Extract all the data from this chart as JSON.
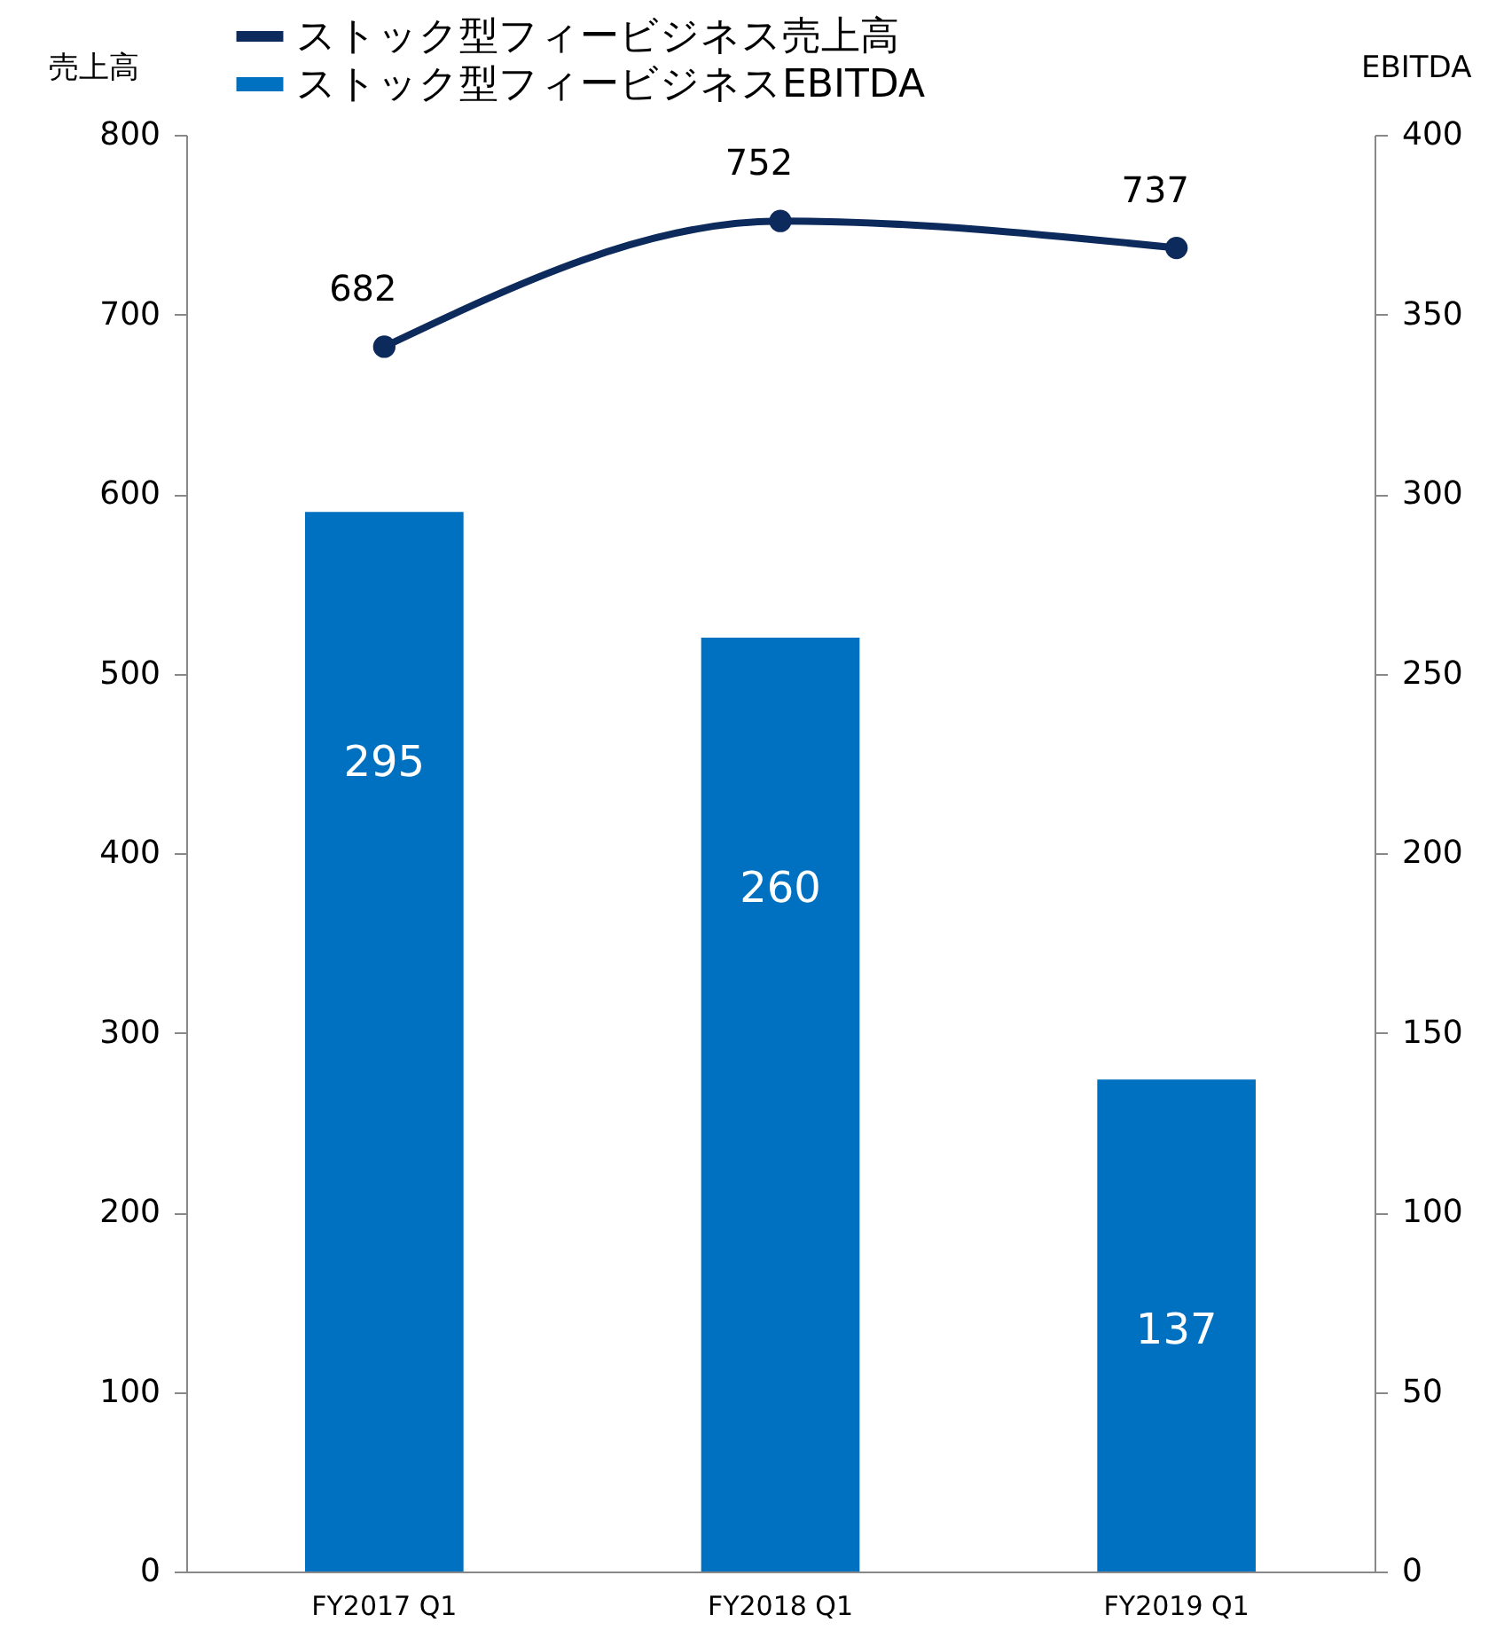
{
  "chart_data": {
    "type": "bar",
    "categories": [
      "FY2017 Q1",
      "FY2018 Q1",
      "FY2019 Q1"
    ],
    "ylabel": "売上高",
    "y2label": "EBITDA",
    "series": [
      {
        "name": "ストック型フィービジネスEBITDA",
        "axis": "y2",
        "color": "#0070c0",
        "values": [
          295,
          260,
          137
        ]
      },
      {
        "name": "ストック型フィービジネス売上高",
        "type": "line",
        "axis": "y",
        "color": "#0d2a5c",
        "values": [
          682,
          752,
          737
        ]
      }
    ],
    "ylim": [
      0,
      800
    ],
    "yticks": [
      0,
      100,
      200,
      300,
      400,
      500,
      600,
      700,
      800
    ],
    "y2lim": [
      0,
      400
    ],
    "y2ticks": [
      0,
      50,
      100,
      150,
      200,
      250,
      300,
      350,
      400
    ],
    "data_labels": true,
    "marker": "circle",
    "grid": false,
    "legend": "top left"
  }
}
